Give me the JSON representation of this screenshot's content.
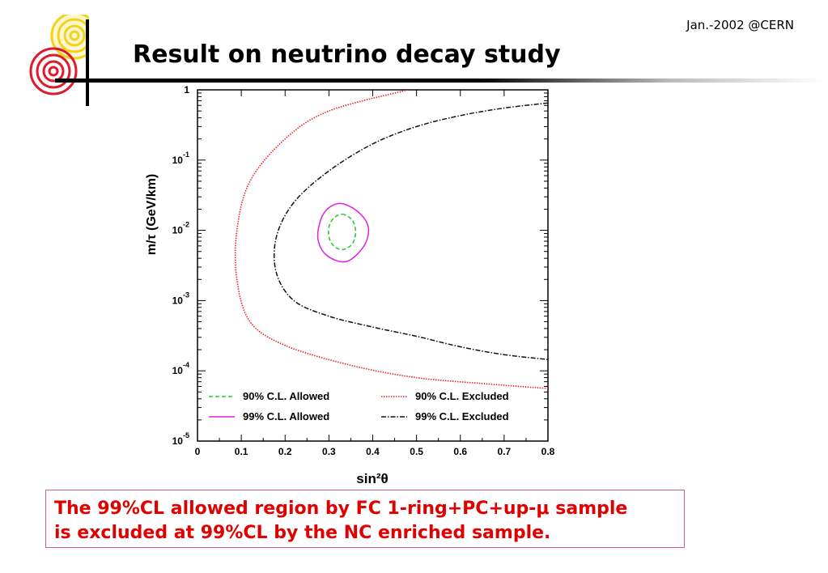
{
  "header": {
    "date_text": "Jan.-2002 @CERN",
    "title": "Result on neutrino decay study"
  },
  "logo": {
    "icon": "concentric-circles-logo-icon",
    "colors": [
      "#f5d21a",
      "#e0192b"
    ]
  },
  "note": {
    "line1": "The 99%CL allowed region by FC 1-ring+PC+up-μ sample",
    "line2": "is excluded at 99%CL by the NC enriched sample."
  },
  "chart_data": {
    "type": "line",
    "xlabel": "sin²θ",
    "ylabel": "m/τ (GeV/km)",
    "xlim": [
      0,
      0.8
    ],
    "ylim": [
      1e-05,
      1
    ],
    "yscale": "log",
    "x_ticks": [
      "0",
      "0.1",
      "0.2",
      "0.3",
      "0.4",
      "0.5",
      "0.6",
      "0.7",
      "0.8"
    ],
    "y_tick_base": "10",
    "y_tick_exponents": [
      "-5",
      "-4",
      "-3",
      "-2",
      "-1"
    ],
    "y_top_label": "1",
    "legend_position": "bottom",
    "series": [
      {
        "name": "90% C.L. Allowed",
        "color": "#22cc22",
        "dash": "dashed",
        "closed": true,
        "points": [
          [
            0.33,
            0.017
          ],
          [
            0.353,
            0.014
          ],
          [
            0.361,
            0.0095
          ],
          [
            0.353,
            0.0064
          ],
          [
            0.33,
            0.0053
          ],
          [
            0.307,
            0.0064
          ],
          [
            0.299,
            0.0095
          ],
          [
            0.307,
            0.014
          ]
        ]
      },
      {
        "name": "99% C.L. Allowed",
        "color": "#dd22dd",
        "dash": "solid",
        "closed": true,
        "points": [
          [
            0.33,
            0.024
          ],
          [
            0.368,
            0.018
          ],
          [
            0.39,
            0.011
          ],
          [
            0.38,
            0.006
          ],
          [
            0.34,
            0.0036
          ],
          [
            0.295,
            0.0044
          ],
          [
            0.275,
            0.0075
          ],
          [
            0.282,
            0.0145
          ],
          [
            0.3,
            0.021
          ]
        ]
      },
      {
        "name": "90% C.L. Excluded",
        "color": "#ee2222",
        "dash": "dotted",
        "closed": false,
        "points": [
          [
            0.48,
            1.0
          ],
          [
            0.3,
            0.5
          ],
          [
            0.2,
            0.2
          ],
          [
            0.12,
            0.05
          ],
          [
            0.09,
            0.01
          ],
          [
            0.09,
            0.002
          ],
          [
            0.12,
            0.0005
          ],
          [
            0.2,
            0.00023
          ],
          [
            0.35,
            0.00012
          ],
          [
            0.5,
            8e-05
          ],
          [
            0.65,
            6.6e-05
          ],
          [
            0.8,
            5.6e-05
          ]
        ]
      },
      {
        "name": "99% C.L. Excluded",
        "color": "#111111",
        "dash": "dashdot",
        "closed": false,
        "points": [
          [
            0.8,
            0.65
          ],
          [
            0.7,
            0.55
          ],
          [
            0.6,
            0.43
          ],
          [
            0.5,
            0.3
          ],
          [
            0.4,
            0.17
          ],
          [
            0.3,
            0.07
          ],
          [
            0.22,
            0.025
          ],
          [
            0.18,
            0.008
          ],
          [
            0.18,
            0.0025
          ],
          [
            0.22,
            0.001
          ],
          [
            0.3,
            0.0006
          ],
          [
            0.4,
            0.00042
          ],
          [
            0.5,
            0.00031
          ],
          [
            0.6,
            0.00022
          ],
          [
            0.7,
            0.00017
          ],
          [
            0.8,
            0.000145
          ]
        ]
      }
    ]
  }
}
